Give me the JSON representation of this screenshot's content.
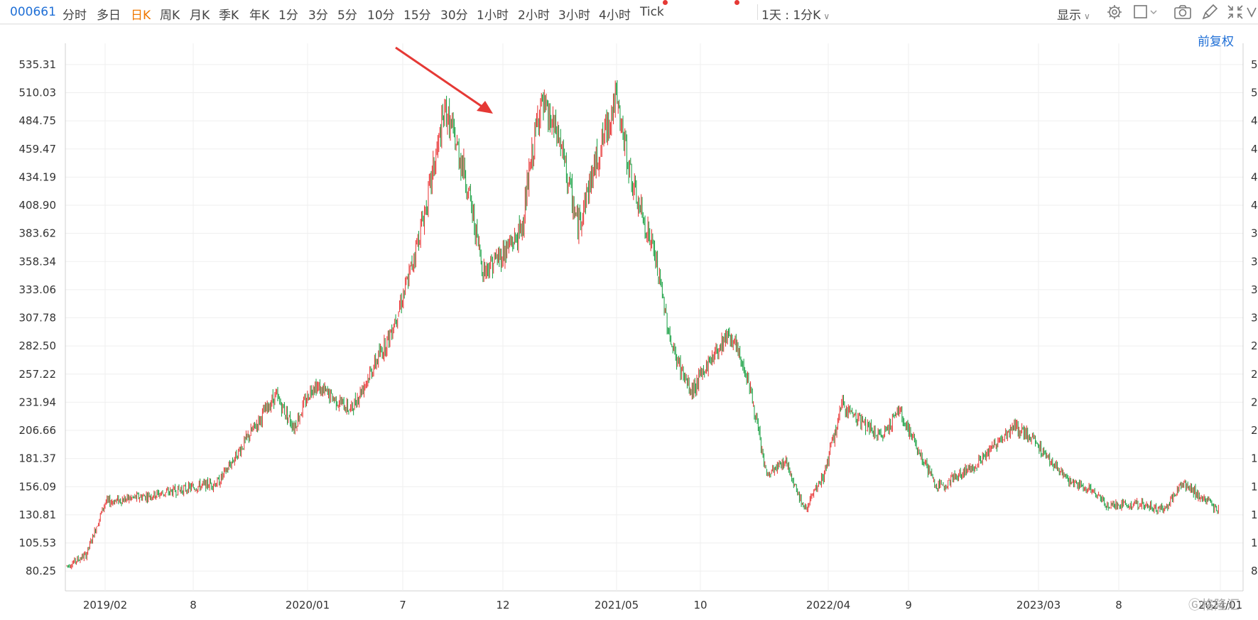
{
  "toolbar": {
    "code": "000661",
    "tabs": [
      "分时",
      "多日",
      "日K",
      "周K",
      "月K",
      "季K",
      "年K",
      "1分",
      "3分",
      "5分",
      "10分",
      "15分",
      "30分",
      "1小时",
      "2小时",
      "3小时",
      "4小时",
      "Tick"
    ],
    "active_tab": "日K",
    "freq_select": "1天 : 1分K",
    "display_label": "显示"
  },
  "adjust_label": "前复权",
  "watermark": "格隆汇",
  "chart_data": {
    "type": "candlestick",
    "ylim": [
      67.6,
      548.0
    ],
    "y_ticks": [
      "535.31",
      "510.03",
      "484.75",
      "459.47",
      "434.19",
      "408.90",
      "383.62",
      "358.34",
      "333.06",
      "307.78",
      "282.50",
      "257.22",
      "231.94",
      "206.66",
      "181.37",
      "156.09",
      "130.81",
      "105.53",
      "80.25"
    ],
    "x_ticks": [
      "2019/02",
      "8",
      "2020/01",
      "7",
      "12",
      "2021/05",
      "10",
      "2022/04",
      "9",
      "2023/03",
      "8",
      "2024/01"
    ],
    "up_color": "#e8302f",
    "down_color": "#109d3c",
    "trend_keypoints": [
      {
        "date": "2018-12",
        "close": 85
      },
      {
        "date": "2019-01",
        "close": 95
      },
      {
        "date": "2019-02",
        "close": 142
      },
      {
        "date": "2019-05",
        "close": 150
      },
      {
        "date": "2019-08",
        "close": 160
      },
      {
        "date": "2019-11",
        "close": 238
      },
      {
        "date": "2019-12",
        "close": 210
      },
      {
        "date": "2020-01",
        "close": 248
      },
      {
        "date": "2020-03",
        "close": 225
      },
      {
        "date": "2020-05",
        "close": 290
      },
      {
        "date": "2020-06",
        "close": 340
      },
      {
        "date": "2020-07",
        "close": 410
      },
      {
        "date": "2020-08",
        "close": 495
      },
      {
        "date": "2020-09",
        "close": 440
      },
      {
        "date": "2020-10",
        "close": 350
      },
      {
        "date": "2020-11",
        "close": 365
      },
      {
        "date": "2020-12",
        "close": 385
      },
      {
        "date": "2021-01",
        "close": 500
      },
      {
        "date": "2021-02",
        "close": 470
      },
      {
        "date": "2021-03",
        "close": 390
      },
      {
        "date": "2021-04",
        "close": 450
      },
      {
        "date": "2021-05",
        "close": 505
      },
      {
        "date": "2021-06",
        "close": 420
      },
      {
        "date": "2021-07",
        "close": 370
      },
      {
        "date": "2021-08",
        "close": 280
      },
      {
        "date": "2021-09",
        "close": 240
      },
      {
        "date": "2021-10",
        "close": 270
      },
      {
        "date": "2021-11",
        "close": 295
      },
      {
        "date": "2021-12",
        "close": 255
      },
      {
        "date": "2022-01",
        "close": 165
      },
      {
        "date": "2022-02",
        "close": 180
      },
      {
        "date": "2022-03",
        "close": 135
      },
      {
        "date": "2022-04",
        "close": 165
      },
      {
        "date": "2022-05",
        "close": 230
      },
      {
        "date": "2022-07",
        "close": 200
      },
      {
        "date": "2022-08",
        "close": 225
      },
      {
        "date": "2022-10",
        "close": 155
      },
      {
        "date": "2022-12",
        "close": 175
      },
      {
        "date": "2023-02",
        "close": 210
      },
      {
        "date": "2023-03",
        "close": 200
      },
      {
        "date": "2023-05",
        "close": 160
      },
      {
        "date": "2023-06",
        "close": 155
      },
      {
        "date": "2023-07",
        "close": 140
      },
      {
        "date": "2023-09",
        "close": 140
      },
      {
        "date": "2023-10",
        "close": 135
      },
      {
        "date": "2023-11",
        "close": 160
      },
      {
        "date": "2024-01",
        "close": 133
      }
    ]
  }
}
